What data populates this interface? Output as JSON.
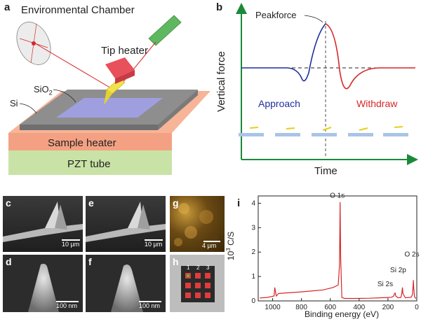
{
  "panel_a": {
    "label": "a",
    "chamber": "Environmental Chamber",
    "tip_heater": "Tip heater",
    "sio2_prefix": "SiO",
    "sio2_sub": "2",
    "si": "Si",
    "sample_heater": "Sample heater",
    "pzt_tube": "PZT tube",
    "colors": {
      "laser": "#d62728",
      "laser_source": "#5fb85f",
      "tip_heater": "#e8505b",
      "sample_heater": "#f4a183",
      "pzt": "#c9e3a6",
      "si_top": "#8e8e8e",
      "sio2": "#9f9fe0",
      "cantilever": "#f2e14c"
    }
  },
  "panel_b": {
    "label": "b",
    "ylabel": "Vertical force",
    "xlabel": "Time",
    "peak_label": "Peakforce",
    "approach_label": "Approach",
    "withdraw_label": "Withdraw",
    "colors": {
      "approach": "#1f2f9c",
      "withdraw": "#d62728",
      "axes": "#1a8a3a"
    }
  },
  "panel_c": {
    "label": "c",
    "scale": "10 µm"
  },
  "panel_d": {
    "label": "d",
    "scale": "100 nm"
  },
  "panel_e": {
    "label": "e",
    "scale": "10 µm"
  },
  "panel_f": {
    "label": "f",
    "scale": "100 nm"
  },
  "panel_g": {
    "label": "g",
    "scale": "4 µm"
  },
  "panel_h": {
    "label": "h",
    "grid_labels": [
      "1",
      "2",
      "3"
    ]
  },
  "chart_data": {
    "type": "line",
    "label": "i",
    "title": "",
    "xlabel": "Binding energy (eV)",
    "ylabel_prefix": "10",
    "ylabel_sup": "3",
    "ylabel_suffix": " C/S",
    "xlim": [
      1100,
      0
    ],
    "ylim": [
      0,
      4.3
    ],
    "xticks": [
      "1000",
      "800",
      "600",
      "400",
      "200",
      "0"
    ],
    "yticks": [
      "0",
      "1",
      "2",
      "3",
      "4"
    ],
    "color": "#d62728",
    "peaks": [
      {
        "name": "O 1s",
        "x": 532,
        "y": 4.05
      },
      {
        "name": "Si 2s",
        "x": 151,
        "y": 0.32
      },
      {
        "name": "Si 2p",
        "x": 100,
        "y": 0.55
      },
      {
        "name": "O 2s",
        "x": 24,
        "y": 0.85
      }
    ],
    "x": [
      1090,
      1040,
      990,
      985,
      975,
      965,
      960,
      900,
      820,
      740,
      650,
      580,
      545,
      536,
      532,
      528,
      520,
      500,
      420,
      330,
      250,
      200,
      175,
      160,
      155,
      150,
      146,
      130,
      110,
      104,
      100,
      96,
      80,
      60,
      40,
      30,
      26,
      24,
      22,
      16,
      10,
      5
    ],
    "y": [
      0.12,
      0.14,
      0.2,
      0.55,
      0.2,
      0.26,
      0.3,
      0.33,
      0.36,
      0.4,
      0.45,
      0.55,
      0.65,
      1.5,
      4.05,
      1.8,
      0.14,
      0.1,
      0.1,
      0.11,
      0.13,
      0.14,
      0.15,
      0.2,
      0.3,
      0.32,
      0.2,
      0.13,
      0.14,
      0.3,
      0.55,
      0.3,
      0.13,
      0.14,
      0.15,
      0.25,
      0.6,
      0.85,
      0.6,
      0.18,
      0.12,
      0.1
    ]
  }
}
